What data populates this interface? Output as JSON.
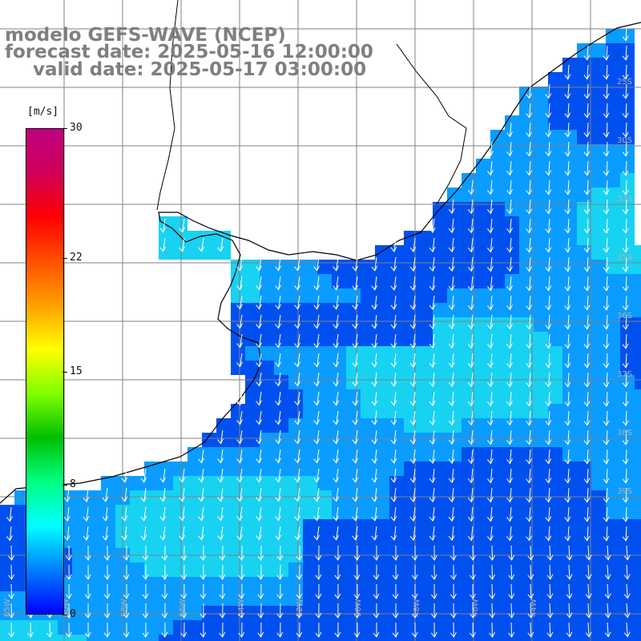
{
  "title": {
    "line1": "modelo GEFS-WAVE (NCEP)",
    "line2": "forecast date: 2025-05-16 12:00:00",
    "line3": "valid date: 2025-05-17 03:00:00"
  },
  "colorbar": {
    "units": "[m/s]",
    "ticks": [
      {
        "label": "30",
        "value": 30
      },
      {
        "label": "22",
        "value": 22
      },
      {
        "label": "15",
        "value": 15
      },
      {
        "label": "8",
        "value": 8
      },
      {
        "label": "0",
        "value": 0
      }
    ],
    "range": [
      0,
      30
    ],
    "colors": [
      "#0000ff",
      "#0080ff",
      "#00ffff",
      "#00ff80",
      "#00c000",
      "#80ff00",
      "#ffff00",
      "#ffa000",
      "#ff5000",
      "#ff0000",
      "#d0005a",
      "#c00080"
    ]
  },
  "map": {
    "land_color": "#ffffff",
    "coast_color": "#000000",
    "grid_color": "#808080",
    "field_colors": {
      "low": "#0050f0",
      "mid": "#0a9cff",
      "high": "#18d2f2"
    },
    "arrow_color": "#ffffff",
    "latitude_labels": [
      "25S",
      "30S",
      "33S",
      "35S",
      "36S",
      "37S",
      "38S",
      "39S"
    ],
    "longitude_labels": [
      "65W",
      "60W",
      "58W",
      "56W",
      "54W",
      "52W",
      "50W",
      "48W",
      "46W",
      "44W"
    ]
  }
}
